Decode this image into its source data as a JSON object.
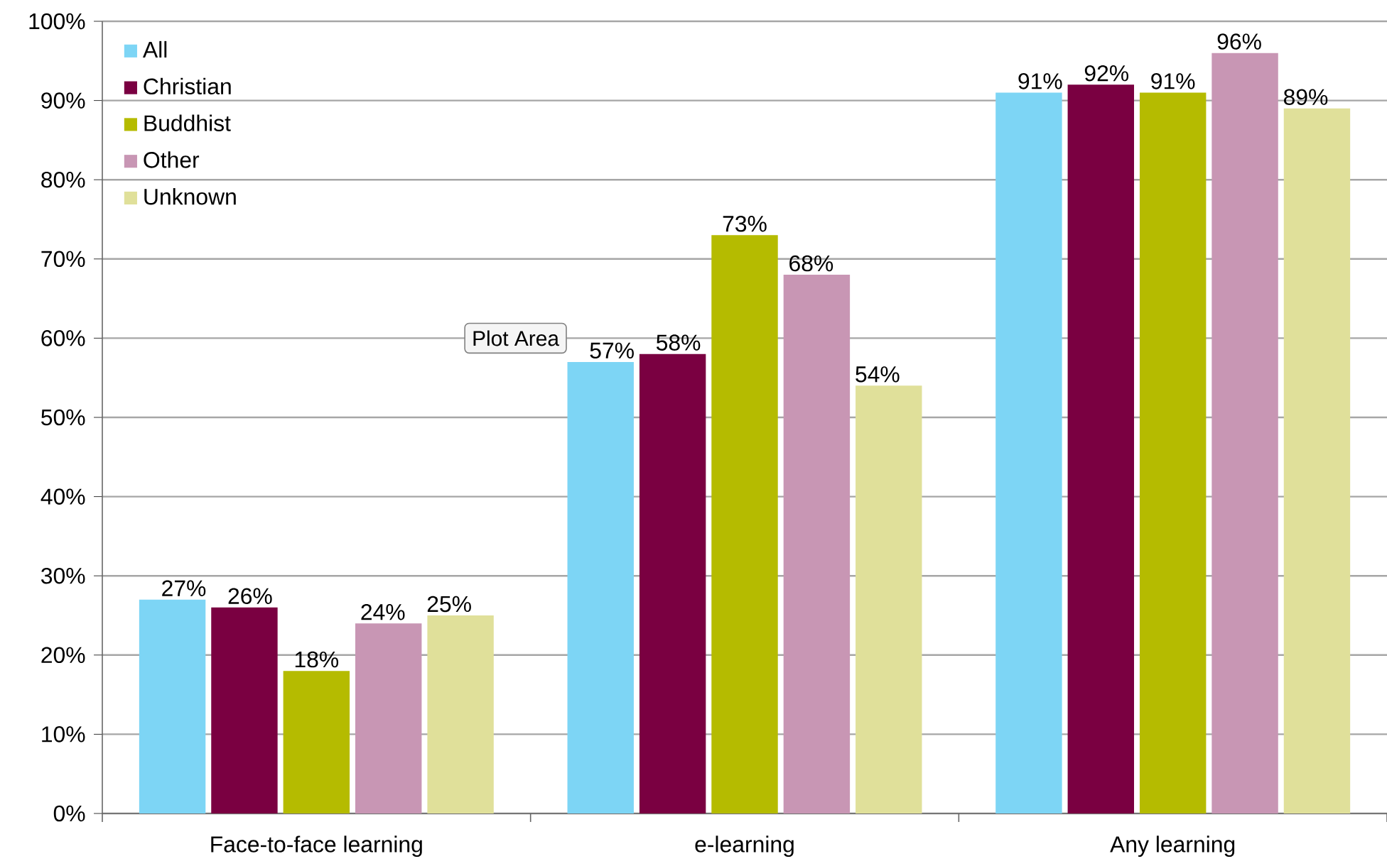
{
  "chart_data": {
    "type": "bar",
    "categories": [
      "Face-to-face learning",
      "e-learning",
      "Any learning"
    ],
    "series": [
      {
        "name": "All",
        "color": "#7dd5f5",
        "values": [
          27,
          57,
          91
        ],
        "value_labels": [
          "27%",
          "57%",
          "91%"
        ]
      },
      {
        "name": "Christian",
        "color": "#7a0041",
        "values": [
          26,
          58,
          92
        ],
        "value_labels": [
          "26%",
          "58%",
          "92%"
        ]
      },
      {
        "name": "Buddhist",
        "color": "#b5bb00",
        "values": [
          18,
          73,
          91
        ],
        "value_labels": [
          "18%",
          "73%",
          "91%"
        ]
      },
      {
        "name": "Other",
        "color": "#c896b4",
        "values": [
          24,
          68,
          96
        ],
        "value_labels": [
          "24%",
          "68%",
          "96%"
        ]
      },
      {
        "name": "Unknown",
        "color": "#e0e09a",
        "values": [
          25,
          54,
          89
        ],
        "value_labels": [
          "25%",
          "54%",
          "89%"
        ]
      }
    ],
    "ylim": [
      0,
      100
    ],
    "yticks": [
      {
        "value": 0,
        "label": "0%"
      },
      {
        "value": 10,
        "label": "10%"
      },
      {
        "value": 20,
        "label": "20%"
      },
      {
        "value": 30,
        "label": "30%"
      },
      {
        "value": 40,
        "label": "40%"
      },
      {
        "value": 50,
        "label": "50%"
      },
      {
        "value": 60,
        "label": "60%"
      },
      {
        "value": 70,
        "label": "70%"
      },
      {
        "value": 80,
        "label": "80%"
      },
      {
        "value": 90,
        "label": "90%"
      },
      {
        "value": 100,
        "label": "100%"
      }
    ],
    "grid": "y",
    "legend": "top left",
    "annotations": [
      "Plot Area"
    ]
  }
}
